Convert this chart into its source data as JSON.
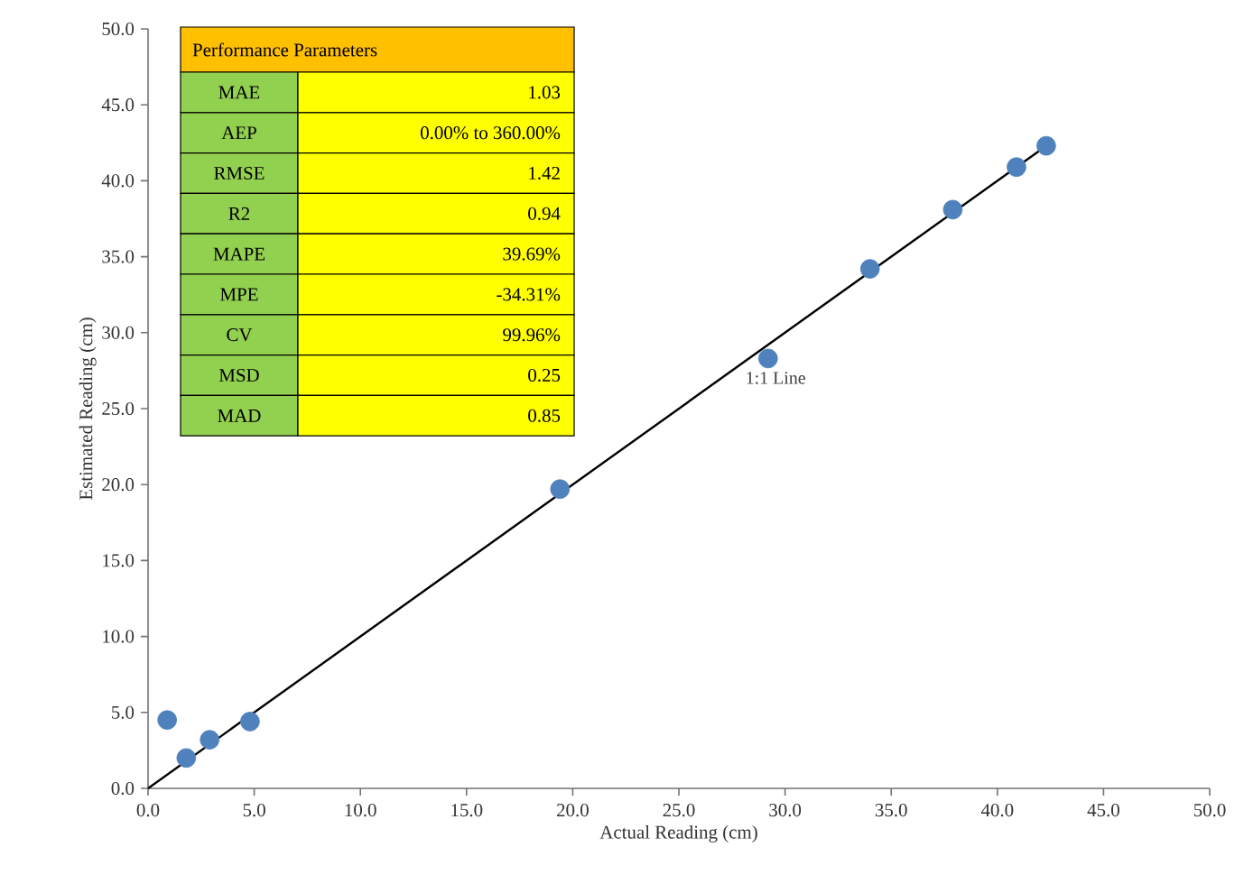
{
  "chart_data": {
    "type": "scatter",
    "xlabel": "Actual Reading (cm)",
    "ylabel": "Estimated Reading (cm)",
    "xlim": [
      0,
      50
    ],
    "ylim": [
      0,
      50
    ],
    "xticks": [
      {
        "value": 0,
        "label": "0.0"
      },
      {
        "value": 5,
        "label": "5.0"
      },
      {
        "value": 10,
        "label": "10.0"
      },
      {
        "value": 15,
        "label": "15.0"
      },
      {
        "value": 20,
        "label": "20.0"
      },
      {
        "value": 25,
        "label": "25.0"
      },
      {
        "value": 30,
        "label": "30.0"
      },
      {
        "value": 35,
        "label": "35.0"
      },
      {
        "value": 40,
        "label": "40.0"
      },
      {
        "value": 45,
        "label": "45.0"
      },
      {
        "value": 50,
        "label": "50.0"
      }
    ],
    "yticks": [
      {
        "value": 0,
        "label": "0.0"
      },
      {
        "value": 5,
        "label": "5.0"
      },
      {
        "value": 10,
        "label": "10.0"
      },
      {
        "value": 15,
        "label": "15.0"
      },
      {
        "value": 20,
        "label": "20.0"
      },
      {
        "value": 25,
        "label": "25.0"
      },
      {
        "value": 30,
        "label": "30.0"
      },
      {
        "value": 35,
        "label": "35.0"
      },
      {
        "value": 40,
        "label": "40.0"
      },
      {
        "value": 45,
        "label": "45.0"
      },
      {
        "value": 50,
        "label": "50.0"
      }
    ],
    "series": [
      {
        "color": "#4f81bd",
        "marker": "circle",
        "x": [
          0.9,
          1.8,
          2.9,
          4.8,
          19.4,
          29.2,
          34.0,
          37.9,
          40.9,
          42.3
        ],
        "values": [
          4.5,
          2.0,
          3.2,
          4.4,
          19.7,
          28.3,
          34.2,
          38.1,
          40.9,
          42.3
        ]
      },
      {
        "type": "line",
        "name": "1:1 Line",
        "color": "#000000",
        "marker": "none",
        "x": [
          0,
          42.3
        ],
        "values": [
          0,
          42.3
        ]
      }
    ],
    "grid": false,
    "legend": false,
    "annotations": [
      "Performance Parameters",
      "MAE",
      "1.03",
      "AEP",
      "0.00% to 360.00%",
      "RMSE",
      "1.42",
      "R2",
      "0.94",
      "MAPE",
      "39.69%",
      "MPE",
      "-34.31%",
      "CV",
      "99.96%",
      "MSD",
      "0.25",
      "MAD",
      "0.85"
    ]
  }
}
